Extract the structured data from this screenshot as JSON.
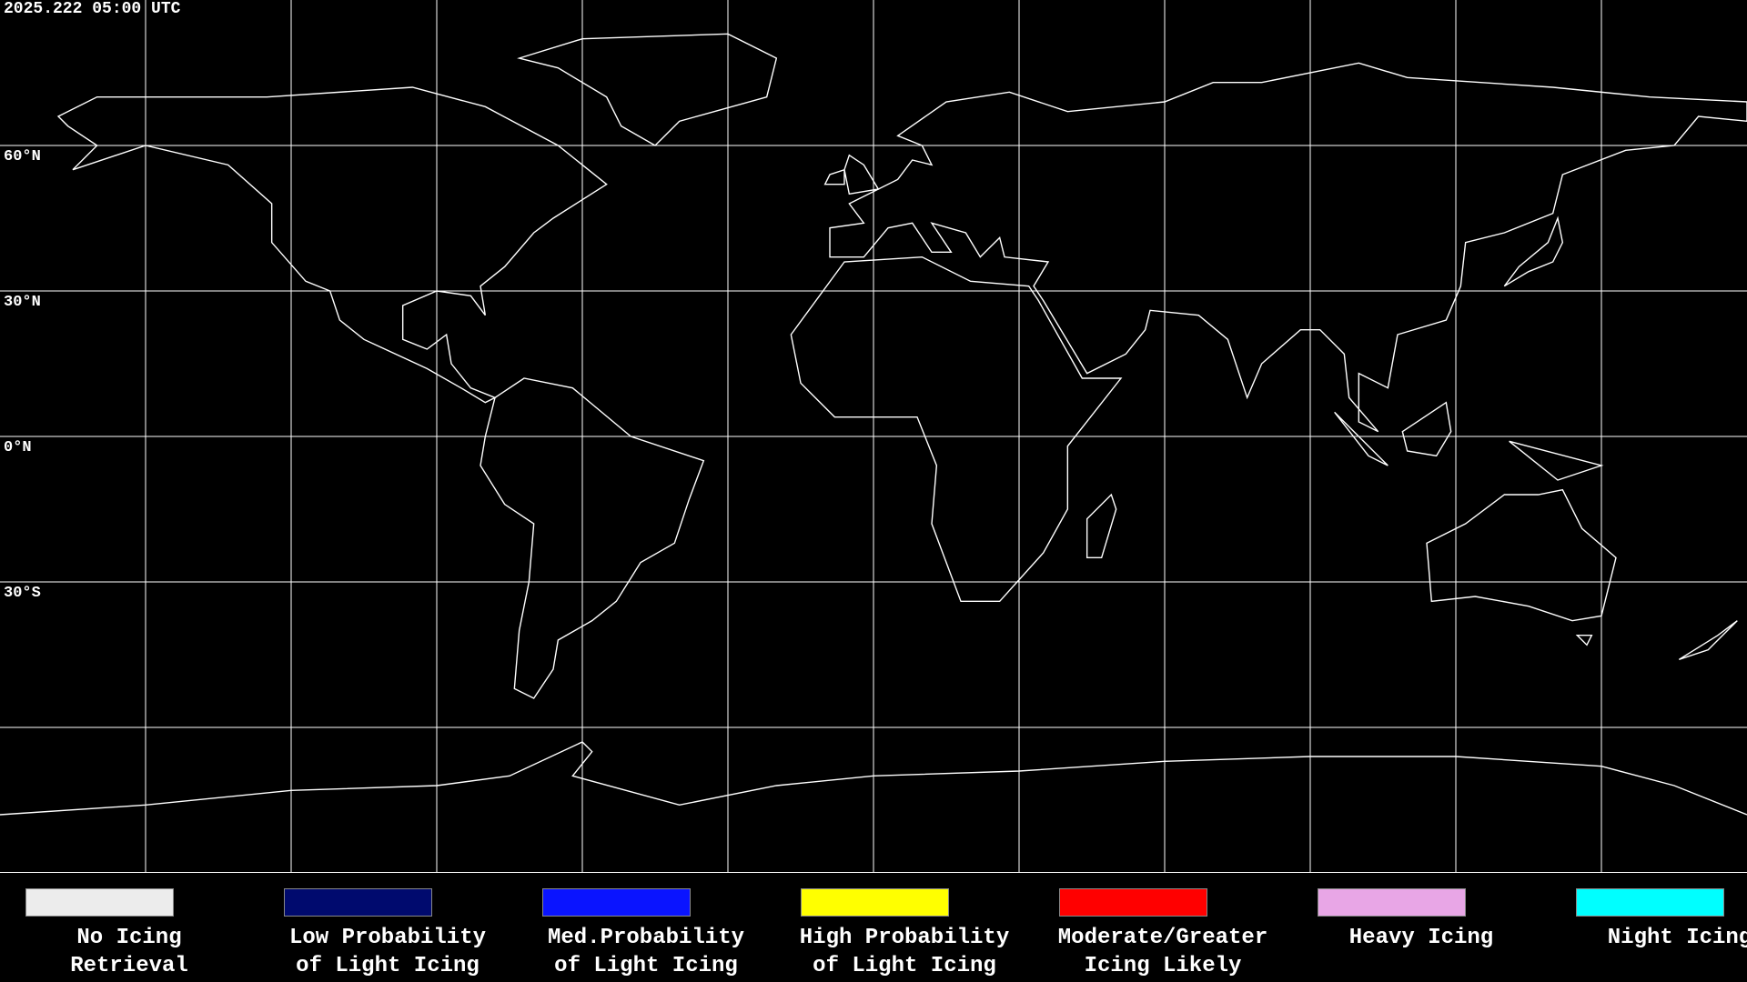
{
  "header": {
    "timestamp": "2025.222 05:00 UTC"
  },
  "map": {
    "latitude_labels": [
      "60°N",
      "30°N",
      "0°N",
      "30°S"
    ]
  },
  "legend": {
    "items": [
      {
        "lines": [
          "No Icing",
          "Retrieval"
        ],
        "color": "#ececec"
      },
      {
        "lines": [
          "Low Probability",
          "of Light Icing"
        ],
        "color": "#000a6e"
      },
      {
        "lines": [
          "Med.Probability",
          "of Light Icing"
        ],
        "color": "#0a14ff"
      },
      {
        "lines": [
          "High Probability",
          "of Light Icing"
        ],
        "color": "#ffff00"
      },
      {
        "lines": [
          "Moderate/Greater",
          "Icing Likely"
        ],
        "color": "#ff0000"
      },
      {
        "lines": [
          "Heavy Icing"
        ],
        "color": "#e8a6e6"
      },
      {
        "lines": [
          "Night Icing"
        ],
        "color": "#00ffff"
      }
    ]
  }
}
